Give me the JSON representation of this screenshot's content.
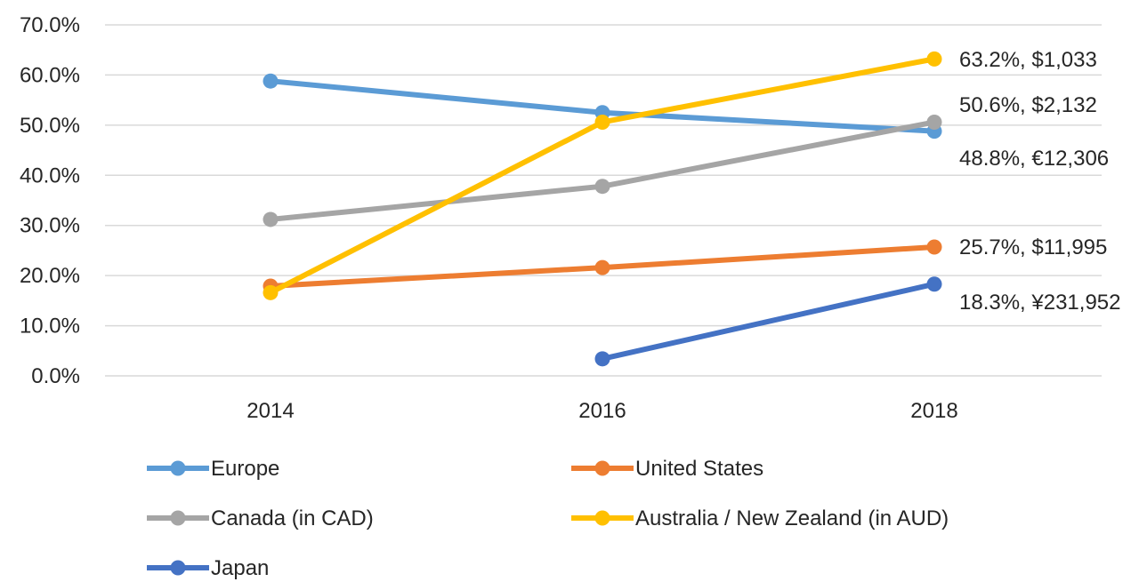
{
  "chart_data": {
    "type": "line",
    "title": "",
    "xlabel": "",
    "ylabel": "",
    "x": [
      "2014",
      "2016",
      "2018"
    ],
    "ylim": [
      0,
      70
    ],
    "yticks": [
      "0.0%",
      "10.0%",
      "20.0%",
      "30.0%",
      "40.0%",
      "50.0%",
      "60.0%",
      "70.0%"
    ],
    "grid": true,
    "legend_position": "bottom",
    "series": [
      {
        "name": "Europe",
        "color": "#5B9BD5",
        "values": [
          58.8,
          52.5,
          48.8
        ],
        "end_label": "48.8%, €12,306"
      },
      {
        "name": "United States",
        "color": "#ED7D31",
        "values": [
          17.9,
          21.6,
          25.7
        ],
        "end_label": "25.7%, $11,995"
      },
      {
        "name": "Canada (in CAD)",
        "color": "#A5A5A5",
        "values": [
          31.2,
          37.8,
          50.6
        ],
        "end_label": "50.6%, $2,132"
      },
      {
        "name": "Australia / New Zealand (in AUD)",
        "color": "#FFC000",
        "values": [
          16.6,
          50.6,
          63.2
        ],
        "end_label": "63.2%, $1,033"
      },
      {
        "name": "Japan",
        "color": "#4472C4",
        "values": [
          null,
          3.4,
          18.3
        ],
        "end_label": "18.3%, ¥231,952"
      }
    ]
  }
}
